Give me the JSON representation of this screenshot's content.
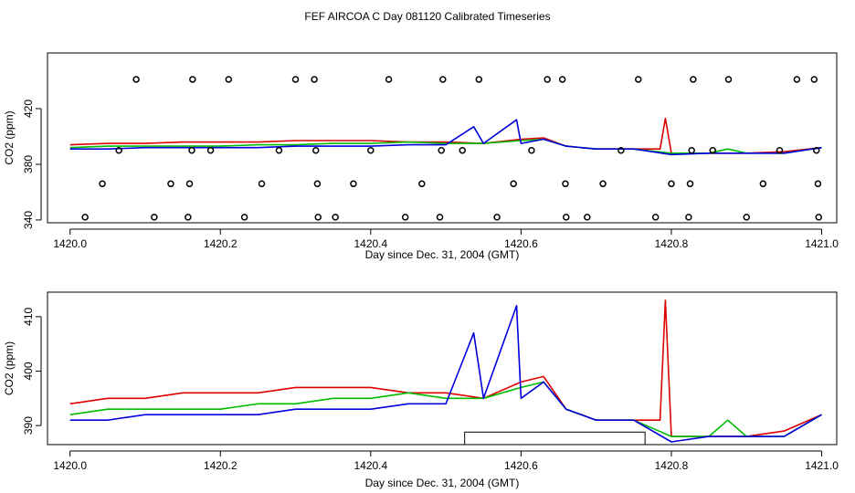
{
  "page_title": "FEF AIRCOA C  Day 081120  Calibrated Timeseries",
  "colors": {
    "series1": "#dd0000",
    "series2": "#00bb00",
    "series3": "#0000dd",
    "axis": "#000000"
  },
  "chart_data": [
    {
      "type": "line",
      "title": "",
      "xlabel": "Day since Dec. 31, 2004 (GMT)",
      "ylabel": "CO2 (ppm)",
      "xlim": [
        1419.97,
        1421.02
      ],
      "ylim": [
        338,
        460
      ],
      "x_ticks": [
        1420.0,
        1420.2,
        1420.4,
        1420.6,
        1420.8,
        1421.0
      ],
      "x_tick_labels": [
        "1420.0",
        "1420.2",
        "1420.4",
        "1420.6",
        "1420.8",
        "1421.0"
      ],
      "y_ticks": [
        340,
        380,
        420
      ],
      "y_tick_labels": [
        "340",
        "380",
        "420"
      ],
      "grid": false,
      "series": [
        {
          "color": "#dd0000",
          "x": [
            1420.0,
            1420.05,
            1420.1,
            1420.15,
            1420.2,
            1420.25,
            1420.3,
            1420.35,
            1420.4,
            1420.45,
            1420.5,
            1420.55,
            1420.6,
            1420.63,
            1420.66,
            1420.7,
            1420.75,
            1420.785,
            1420.792,
            1420.8,
            1420.85,
            1420.9,
            1420.95,
            1421.0
          ],
          "y": [
            394,
            395,
            395,
            396,
            396,
            396,
            397,
            397,
            397,
            396,
            396,
            395,
            398,
            399,
            393,
            391,
            391,
            391,
            413,
            388,
            388,
            388,
            389,
            392
          ]
        },
        {
          "color": "#00bb00",
          "x": [
            1420.0,
            1420.05,
            1420.1,
            1420.15,
            1420.2,
            1420.25,
            1420.3,
            1420.35,
            1420.4,
            1420.45,
            1420.5,
            1420.55,
            1420.6,
            1420.63,
            1420.66,
            1420.7,
            1420.75,
            1420.8,
            1420.85,
            1420.875,
            1420.9,
            1420.95,
            1421.0
          ],
          "y": [
            392,
            393,
            393,
            393,
            393,
            394,
            394,
            395,
            395,
            396,
            395,
            395,
            397,
            398,
            393,
            391,
            391,
            388,
            388,
            391,
            388,
            388,
            392
          ]
        },
        {
          "color": "#0000dd",
          "x": [
            1420.0,
            1420.05,
            1420.1,
            1420.15,
            1420.2,
            1420.25,
            1420.3,
            1420.35,
            1420.4,
            1420.45,
            1420.5,
            1420.537,
            1420.55,
            1420.594,
            1420.6,
            1420.63,
            1420.66,
            1420.7,
            1420.75,
            1420.8,
            1420.85,
            1420.9,
            1420.95,
            1421.0
          ],
          "y": [
            391,
            391,
            392,
            392,
            392,
            392,
            393,
            393,
            393,
            394,
            394,
            407,
            395,
            412,
            395,
            398,
            393,
            391,
            391,
            387,
            388,
            388,
            388,
            392
          ]
        }
      ],
      "markers": {
        "shape": "circle",
        "x": [
          1420.02,
          1420.043,
          1420.065,
          1420.088,
          1420.112,
          1420.134,
          1420.157,
          1420.159,
          1420.162,
          1420.163,
          1420.187,
          1420.211,
          1420.232,
          1420.255,
          1420.278,
          1420.3,
          1420.325,
          1420.327,
          1420.329,
          1420.33,
          1420.353,
          1420.377,
          1420.4,
          1420.424,
          1420.446,
          1420.468,
          1420.492,
          1420.494,
          1420.496,
          1420.522,
          1420.544,
          1420.568,
          1420.59,
          1420.614,
          1420.635,
          1420.655,
          1420.659,
          1420.66,
          1420.688,
          1420.709,
          1420.733,
          1420.756,
          1420.779,
          1420.8,
          1420.823,
          1420.825,
          1420.827,
          1420.829,
          1420.855,
          1420.876,
          1420.9,
          1420.922,
          1420.944,
          1420.967,
          1420.99,
          1420.993,
          1420.995,
          1420.996
        ],
        "y": [
          342,
          366,
          390,
          441,
          342,
          366,
          342,
          366,
          390,
          441,
          390,
          441,
          342,
          366,
          390,
          441,
          441,
          390,
          366,
          342,
          342,
          366,
          390,
          441,
          342,
          366,
          342,
          390,
          441,
          390,
          441,
          342,
          366,
          390,
          441,
          441,
          366,
          342,
          342,
          366,
          390,
          441,
          342,
          366,
          342,
          366,
          390,
          441,
          390,
          441,
          342,
          366,
          390,
          441,
          441,
          390,
          366,
          342
        ]
      }
    },
    {
      "type": "line",
      "title": "",
      "xlabel": "Day since Dec. 31, 2004 (GMT)",
      "ylabel": "CO2 (ppm)",
      "xlim": [
        1419.97,
        1421.02
      ],
      "ylim": [
        386.5,
        414.5
      ],
      "x_ticks": [
        1420.0,
        1420.2,
        1420.4,
        1420.6,
        1420.8,
        1421.0
      ],
      "x_tick_labels": [
        "1420.0",
        "1420.2",
        "1420.4",
        "1420.6",
        "1420.8",
        "1421.0"
      ],
      "y_ticks": [
        390,
        400,
        410
      ],
      "y_tick_labels": [
        "390",
        "400",
        "410"
      ],
      "grid": false,
      "annotation_bar": {
        "x_range": [
          1420.525,
          1420.765
        ],
        "y_range": [
          386.5,
          388.8
        ]
      },
      "series": [
        {
          "color": "#dd0000",
          "x": [
            1420.0,
            1420.05,
            1420.1,
            1420.15,
            1420.2,
            1420.25,
            1420.3,
            1420.35,
            1420.4,
            1420.45,
            1420.5,
            1420.55,
            1420.6,
            1420.63,
            1420.66,
            1420.7,
            1420.75,
            1420.785,
            1420.792,
            1420.8,
            1420.85,
            1420.9,
            1420.95,
            1421.0
          ],
          "y": [
            394,
            395,
            395,
            396,
            396,
            396,
            397,
            397,
            397,
            396,
            396,
            395,
            398,
            399,
            393,
            391,
            391,
            391,
            413,
            388,
            388,
            388,
            389,
            392
          ]
        },
        {
          "color": "#00bb00",
          "x": [
            1420.0,
            1420.05,
            1420.1,
            1420.15,
            1420.2,
            1420.25,
            1420.3,
            1420.35,
            1420.4,
            1420.45,
            1420.5,
            1420.55,
            1420.6,
            1420.63,
            1420.66,
            1420.7,
            1420.75,
            1420.8,
            1420.85,
            1420.875,
            1420.9,
            1420.95,
            1421.0
          ],
          "y": [
            392,
            393,
            393,
            393,
            393,
            394,
            394,
            395,
            395,
            396,
            395,
            395,
            397,
            398,
            393,
            391,
            391,
            388,
            388,
            391,
            388,
            388,
            392
          ]
        },
        {
          "color": "#0000dd",
          "x": [
            1420.0,
            1420.05,
            1420.1,
            1420.15,
            1420.2,
            1420.25,
            1420.3,
            1420.35,
            1420.4,
            1420.45,
            1420.5,
            1420.537,
            1420.55,
            1420.594,
            1420.6,
            1420.63,
            1420.66,
            1420.7,
            1420.75,
            1420.8,
            1420.85,
            1420.9,
            1420.95,
            1421.0
          ],
          "y": [
            391,
            391,
            392,
            392,
            392,
            392,
            393,
            393,
            393,
            394,
            394,
            407,
            395,
            412,
            395,
            398,
            393,
            391,
            391,
            387,
            388,
            388,
            388,
            392
          ]
        }
      ]
    }
  ]
}
